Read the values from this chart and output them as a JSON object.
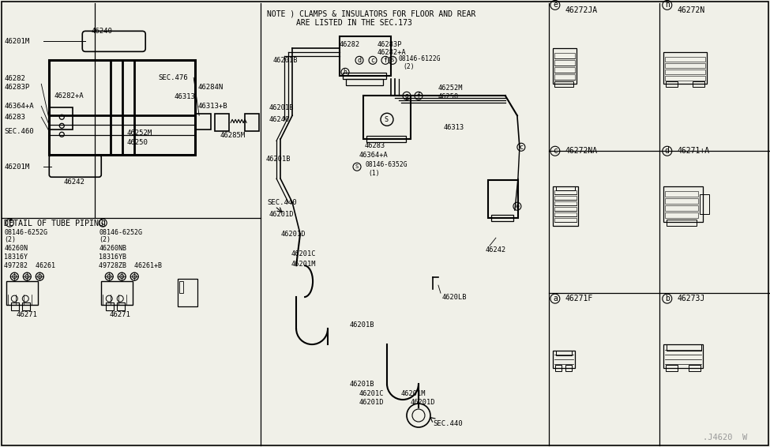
{
  "bg_color": "#f0f0e8",
  "line_color": "#000000",
  "note_line1": "NOTE ) CLAMPS & INSULATORS FOR FLOOR AND REAR",
  "note_line2": "ARE LISTED IN THE SEC.173",
  "watermark": ".J4620  W",
  "detail_label": "DETAIL OF TUBE PIPING",
  "grid_labels": [
    [
      "a",
      "46271F"
    ],
    [
      "b",
      "46273J"
    ],
    [
      "c",
      "46272NA"
    ],
    [
      "d",
      "46271+A"
    ],
    [
      "e",
      "46272JA"
    ],
    [
      "h",
      "46272N"
    ]
  ],
  "sub_f_labels": [
    "08146-6252G",
    "(2)",
    "46260N",
    "18316Y",
    "497282  46261",
    "46271"
  ],
  "sub_g_labels": [
    "08146-6252G",
    "(2)",
    "46260NB",
    "18316YB",
    "49728ZB  46261+B",
    "46271"
  ]
}
